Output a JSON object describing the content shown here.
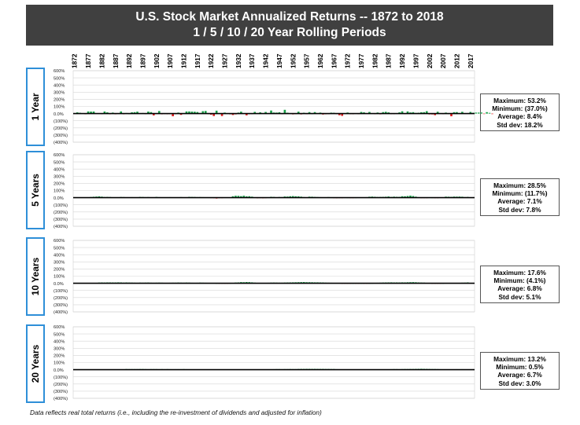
{
  "title_line1": "U.S. Stock Market Annualized Returns -- 1872 to 2018",
  "title_line2": "1 / 5 / 10 / 20 Year Rolling Periods",
  "footnote": "Data reflects real total returns (i.e., including the re-investment of dividends and adjusted for inflation)",
  "colors": {
    "positive": "#1aa04a",
    "negative": "#e0191b",
    "title_bg": "#404040",
    "label_border": "#2e8fd8"
  },
  "chart_data": {
    "type": "bar",
    "x_start": 1872,
    "x_end": 2018,
    "xtick_labels": [
      "1872",
      "1877",
      "1882",
      "1887",
      "1892",
      "1897",
      "1902",
      "1907",
      "1912",
      "1917",
      "1922",
      "1927",
      "1932",
      "1937",
      "1942",
      "1947",
      "1952",
      "1957",
      "1962",
      "1967",
      "1972",
      "1977",
      "1982",
      "1987",
      "1992",
      "1997",
      "2002",
      "2007",
      "2012",
      "2017"
    ],
    "ytick_labels": [
      "600%",
      "500%",
      "400%",
      "300%",
      "200%",
      "100%",
      "0.0%",
      "(100%)",
      "(200%)",
      "(300%)",
      "(400%)"
    ],
    "ylim": [
      -400,
      600
    ],
    "grid": true,
    "panels": [
      {
        "label": "1 Year",
        "stats": [
          "Maximum: 53.2%",
          "Minimum: (37.0%)",
          "Average: 8.4%",
          "Std dev: 18.2%"
        ],
        "values": [
          5,
          17,
          11,
          5,
          -8,
          30,
          28,
          29,
          4,
          5,
          -4,
          29,
          17,
          -8,
          14,
          -9,
          2,
          30,
          -9,
          8,
          0,
          18,
          20,
          27,
          7,
          8,
          -2,
          28,
          21,
          -25,
          2,
          36,
          -10,
          -1,
          -8,
          -4,
          -37,
          -3,
          14,
          -18,
          3,
          30,
          30,
          28,
          26,
          22,
          8,
          34,
          37,
          -1,
          -15,
          -34,
          41,
          2,
          -34,
          14,
          4,
          -10,
          -20,
          -11,
          14,
          27,
          4,
          -24,
          0,
          -4,
          24,
          3,
          18,
          6,
          23,
          6,
          43,
          15,
          14,
          19,
          -7,
          53,
          12,
          3,
          -11,
          -2,
          27,
          -11,
          12,
          -5,
          21,
          0,
          21,
          5,
          14,
          -13,
          -9,
          -4,
          13,
          11,
          -4,
          -23,
          -32,
          3,
          15,
          -7,
          -8,
          3,
          -3,
          23,
          17,
          5,
          23,
          2,
          -3,
          15,
          -10,
          21,
          25,
          17,
          -4,
          -6,
          2,
          17,
          32,
          -2,
          30,
          16,
          20,
          9,
          12,
          19,
          20,
          34,
          -11,
          -12,
          -22,
          26,
          7,
          -3,
          14,
          1,
          -37,
          20,
          21,
          7,
          25,
          2,
          6,
          23,
          11,
          14,
          14,
          15,
          -6,
          20,
          10,
          -7
        ]
      },
      {
        "label": "5 Years",
        "stats": [
          "Maximum: 28.5%",
          "Minimum: (11.7%)",
          "Average: 7.1%",
          "Std dev: 7.8%"
        ],
        "values": [
          null,
          null,
          null,
          null,
          3,
          5,
          9,
          13,
          15,
          18,
          14,
          9,
          10,
          9,
          6,
          6,
          5,
          9,
          8,
          4,
          5,
          7,
          6,
          5,
          10,
          9,
          7,
          8,
          6,
          4,
          10,
          7,
          4,
          3,
          5,
          7,
          6,
          5,
          5,
          8,
          4,
          3,
          11,
          10,
          9,
          7,
          8,
          7,
          6,
          2,
          -5,
          -8,
          -12,
          -6,
          -4,
          3,
          4,
          3,
          20,
          26,
          25,
          21,
          27,
          18,
          20,
          14,
          3,
          -8,
          -6,
          -9,
          -4,
          3,
          12,
          10,
          6,
          9,
          8,
          16,
          15,
          20,
          22,
          19,
          18,
          14,
          8,
          5,
          14,
          13,
          10,
          8,
          7,
          4,
          6,
          8,
          5,
          -6,
          -8,
          -2,
          -1,
          2,
          1,
          -4,
          -2,
          1,
          4,
          4,
          5,
          7,
          13,
          15,
          12,
          9,
          10,
          11,
          13,
          16,
          10,
          14,
          12,
          11,
          20,
          19,
          23,
          28,
          23,
          14,
          7,
          -4,
          -3,
          -1,
          4,
          1,
          -3,
          -1,
          2,
          4,
          14,
          13,
          11,
          15,
          14,
          15,
          13,
          8,
          10
        ]
      },
      {
        "label": "10 Years",
        "stats": [
          "Maximum: 17.6%",
          "Minimum: (4.1%)",
          "Average: 6.8%",
          "Std dev: 5.1%"
        ],
        "values": [
          null,
          null,
          null,
          null,
          null,
          null,
          null,
          null,
          null,
          10,
          11,
          10,
          12,
          12,
          11,
          11,
          13,
          12,
          9,
          11,
          10,
          9,
          8,
          7,
          9,
          8,
          9,
          10,
          8,
          7,
          8,
          9,
          8,
          6,
          5,
          7,
          8,
          8,
          10,
          9,
          8,
          10,
          9,
          7,
          6,
          7,
          9,
          8,
          7,
          6,
          5,
          3,
          0,
          -1,
          -2,
          -4,
          -3,
          1,
          6,
          10,
          12,
          16,
          15,
          17,
          16,
          13,
          9,
          5,
          3,
          5,
          6,
          7,
          9,
          10,
          9,
          8,
          8,
          10,
          11,
          12,
          13,
          14,
          15,
          16,
          17,
          15,
          15,
          14,
          13,
          13,
          12,
          11,
          9,
          8,
          7,
          6,
          5,
          3,
          -2,
          -4,
          -2,
          -1,
          0,
          -3,
          -1,
          0,
          -2,
          -1,
          0,
          1,
          3,
          7,
          8,
          10,
          11,
          12,
          13,
          11,
          12,
          11,
          13,
          12,
          14,
          15,
          16,
          14,
          12,
          10,
          9,
          6,
          3,
          -3,
          -4,
          -2,
          -1,
          0,
          2,
          3,
          4,
          5,
          5,
          6,
          8,
          9,
          12
        ]
      },
      {
        "label": "20 Years",
        "stats": [
          "Maximum: 13.2%",
          "Minimum: 0.5%",
          "Average: 6.7%",
          "Std dev: 3.0%"
        ],
        "values": [
          null,
          null,
          null,
          null,
          null,
          null,
          null,
          null,
          null,
          null,
          null,
          null,
          null,
          null,
          null,
          null,
          null,
          null,
          null,
          9,
          8,
          8,
          8,
          8,
          9,
          9,
          8,
          7,
          8,
          8,
          8,
          7,
          8,
          7,
          8,
          7,
          6,
          7,
          7,
          7,
          8,
          7,
          6,
          6,
          6,
          5,
          6,
          5,
          6,
          5,
          5,
          6,
          5,
          5,
          6,
          5,
          5,
          4,
          4,
          5,
          3,
          3,
          4,
          5,
          5,
          5,
          4,
          4,
          5,
          6,
          5,
          5,
          5,
          7,
          8,
          8,
          7,
          8,
          8,
          9,
          8,
          8,
          10,
          11,
          11,
          12,
          12,
          11,
          12,
          11,
          11,
          11,
          10,
          10,
          9,
          9,
          7,
          6,
          4,
          4,
          4,
          3,
          3,
          4,
          3,
          3,
          4,
          4,
          3,
          4,
          4,
          4,
          3,
          4,
          5,
          6,
          7,
          8,
          8,
          7,
          8,
          9,
          9,
          10,
          10,
          11,
          12,
          13,
          12,
          11,
          10,
          9,
          9,
          8,
          7,
          6,
          5,
          6,
          6,
          6,
          7,
          6,
          7,
          6,
          5,
          6
        ]
      }
    ]
  }
}
